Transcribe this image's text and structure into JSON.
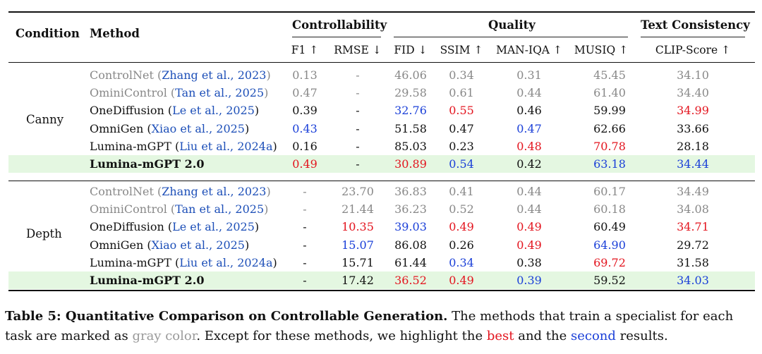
{
  "header": {
    "condition": "Condition",
    "method": "Method",
    "groups": [
      "Controllability",
      "Quality",
      "Text Consistency"
    ],
    "metrics": [
      "F1 ↑",
      "RMSE ↓",
      "FID ↓",
      "SSIM ↑",
      "MAN-IQA ↑",
      "MUSIQ ↑",
      "CLIP-Score ↑"
    ]
  },
  "sections": [
    {
      "condition": "Canny",
      "rows": [
        {
          "name": "ControlNet",
          "cite": "Zhang et al., 2023",
          "gray": true,
          "bold": false,
          "highlight": false,
          "values": [
            "0.13",
            "-",
            "46.06",
            "0.34",
            "0.31",
            "45.45",
            "34.10"
          ],
          "colors": [
            "",
            "",
            "",
            "",
            "",
            "",
            ""
          ]
        },
        {
          "name": "OminiControl",
          "cite": "Tan et al., 2025",
          "gray": true,
          "bold": false,
          "highlight": false,
          "values": [
            "0.47",
            "-",
            "29.58",
            "0.61",
            "0.44",
            "61.40",
            "34.40"
          ],
          "colors": [
            "",
            "",
            "",
            "",
            "",
            "",
            ""
          ]
        },
        {
          "name": "OneDiffusion",
          "cite": "Le et al., 2025",
          "gray": false,
          "bold": false,
          "highlight": false,
          "values": [
            "0.39",
            "-",
            "32.76",
            "0.55",
            "0.46",
            "59.99",
            "34.99"
          ],
          "colors": [
            "",
            "",
            "blue",
            "red",
            "",
            "",
            "red"
          ]
        },
        {
          "name": "OmniGen",
          "cite": "Xiao et al., 2025",
          "gray": false,
          "bold": false,
          "highlight": false,
          "values": [
            "0.43",
            "-",
            "51.58",
            "0.47",
            "0.47",
            "62.66",
            "33.66"
          ],
          "colors": [
            "blue",
            "",
            "",
            "",
            "blue",
            "",
            ""
          ]
        },
        {
          "name": "Lumina-mGPT",
          "cite": "Liu et al., 2024a",
          "gray": false,
          "bold": false,
          "highlight": false,
          "values": [
            "0.16",
            "-",
            "85.03",
            "0.23",
            "0.48",
            "70.78",
            "28.18"
          ],
          "colors": [
            "",
            "",
            "",
            "",
            "red",
            "red",
            ""
          ]
        },
        {
          "name": "Lumina-mGPT 2.0",
          "cite": "",
          "gray": false,
          "bold": true,
          "highlight": true,
          "values": [
            "0.49",
            "-",
            "30.89",
            "0.54",
            "0.42",
            "63.18",
            "34.44"
          ],
          "colors": [
            "red",
            "",
            "red",
            "blue",
            "",
            "blue",
            "blue"
          ]
        }
      ]
    },
    {
      "condition": "Depth",
      "rows": [
        {
          "name": "ControlNet",
          "cite": "Zhang et al., 2023",
          "gray": true,
          "bold": false,
          "highlight": false,
          "values": [
            "-",
            "23.70",
            "36.83",
            "0.41",
            "0.44",
            "60.17",
            "34.49"
          ],
          "colors": [
            "",
            "",
            "",
            "",
            "",
            "",
            ""
          ]
        },
        {
          "name": "OminiControl",
          "cite": "Tan et al., 2025",
          "gray": true,
          "bold": false,
          "highlight": false,
          "values": [
            "-",
            "21.44",
            "36.23",
            "0.52",
            "0.44",
            "60.18",
            "34.08"
          ],
          "colors": [
            "",
            "",
            "",
            "",
            "",
            "",
            ""
          ]
        },
        {
          "name": "OneDiffusion",
          "cite": "Le et al., 2025",
          "gray": false,
          "bold": false,
          "highlight": false,
          "values": [
            "-",
            "10.35",
            "39.03",
            "0.49",
            "0.49",
            "60.49",
            "34.71"
          ],
          "colors": [
            "",
            "red",
            "blue",
            "red",
            "red",
            "",
            "red"
          ]
        },
        {
          "name": "OmniGen",
          "cite": "Xiao et al., 2025",
          "gray": false,
          "bold": false,
          "highlight": false,
          "values": [
            "-",
            "15.07",
            "86.08",
            "0.26",
            "0.49",
            "64.90",
            "29.72"
          ],
          "colors": [
            "",
            "blue",
            "",
            "",
            "red",
            "blue",
            ""
          ]
        },
        {
          "name": "Lumina-mGPT",
          "cite": "Liu et al., 2024a",
          "gray": false,
          "bold": false,
          "highlight": false,
          "values": [
            "-",
            "15.71",
            "61.44",
            "0.34",
            "0.38",
            "69.72",
            "31.58"
          ],
          "colors": [
            "",
            "",
            "",
            "blue",
            "",
            "red",
            ""
          ]
        },
        {
          "name": "Lumina-mGPT 2.0",
          "cite": "",
          "gray": false,
          "bold": true,
          "highlight": true,
          "values": [
            "-",
            "17.42",
            "36.52",
            "0.49",
            "0.39",
            "59.52",
            "34.03"
          ],
          "colors": [
            "",
            "",
            "red",
            "red",
            "blue",
            "",
            "blue"
          ]
        }
      ]
    }
  ],
  "caption": {
    "label": "Table 5: ",
    "title": "Quantitative Comparison on Controllable Generation.",
    "text1": " The methods that train a specialist for each task are marked as ",
    "gray_word": "gray color",
    "text2": ". Except for these methods, we highlight the ",
    "best_word": "best",
    "text3": " and the ",
    "second_word": "second",
    "text4": " results."
  },
  "colors": {
    "red": "#e3141e",
    "blue": "#1a3fd8",
    "gray": "#888888",
    "highlight": "#e4f7e1",
    "cite": "#1d4fb8"
  }
}
